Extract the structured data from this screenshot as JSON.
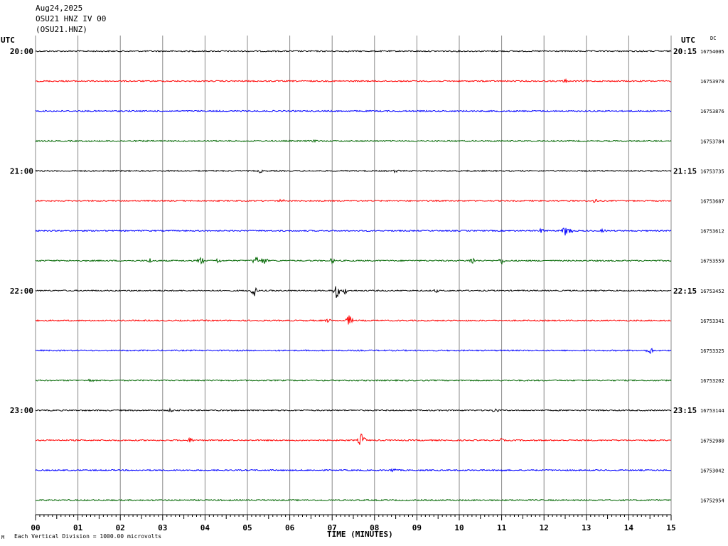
{
  "header": {
    "date": "Aug24,2025",
    "station": "OSU21 HNZ IV 00",
    "code": "(OSU21.HNZ)"
  },
  "utc_left": "UTC",
  "utc_right": "UTC",
  "dc_label": "DC",
  "footer": "Each Vertical Division = 1000.00 microvolts",
  "corner_mark": "M",
  "chart_data": {
    "type": "line",
    "xlabel": "TIME (MINUTES)",
    "xlim": [
      0,
      15
    ],
    "x_ticks": [
      "00",
      "01",
      "02",
      "03",
      "04",
      "05",
      "06",
      "07",
      "08",
      "09",
      "10",
      "11",
      "12",
      "13",
      "14",
      "15"
    ],
    "left_time_labels": [
      "20:00",
      "21:00",
      "22:00",
      "23:00"
    ],
    "right_time_labels": [
      "20:15",
      "21:15",
      "22:15",
      "23:15"
    ],
    "trace_colors": [
      "#000000",
      "#ff0000",
      "#0000ff",
      "#006600"
    ],
    "traces": [
      {
        "dc": "16754005",
        "events": [
          {
            "t": 14.3,
            "a": 2
          }
        ]
      },
      {
        "dc": "16753970",
        "events": [
          {
            "t": 12.5,
            "a": 3
          }
        ]
      },
      {
        "dc": "16753876",
        "events": []
      },
      {
        "dc": "16753784",
        "events": [
          {
            "t": 6.6,
            "a": 3
          }
        ]
      },
      {
        "dc": "16753735",
        "events": [
          {
            "t": 5.3,
            "a": 3
          },
          {
            "t": 8.5,
            "a": 3
          }
        ]
      },
      {
        "dc": "16753687",
        "events": [
          {
            "t": 5.8,
            "a": 3
          },
          {
            "t": 13.2,
            "a": 4
          }
        ]
      },
      {
        "dc": "16753612",
        "events": [
          {
            "t": 11.95,
            "a": 4
          },
          {
            "t": 12.5,
            "a": 7
          },
          {
            "t": 12.6,
            "a": 6
          },
          {
            "t": 13.4,
            "a": 3
          }
        ]
      },
      {
        "dc": "16753559",
        "events": [
          {
            "t": 2.7,
            "a": 4
          },
          {
            "t": 3.9,
            "a": 6
          },
          {
            "t": 4.3,
            "a": 4
          },
          {
            "t": 5.2,
            "a": 7
          },
          {
            "t": 5.4,
            "a": 6
          },
          {
            "t": 7.0,
            "a": 4
          },
          {
            "t": 10.3,
            "a": 6
          },
          {
            "t": 11.0,
            "a": 5
          }
        ]
      },
      {
        "dc": "16753452",
        "events": [
          {
            "t": 5.15,
            "a": 9
          },
          {
            "t": 7.1,
            "a": 11
          },
          {
            "t": 7.3,
            "a": 5
          },
          {
            "t": 9.45,
            "a": 3
          }
        ]
      },
      {
        "dc": "16753341",
        "events": [
          {
            "t": 6.9,
            "a": 3
          },
          {
            "t": 7.4,
            "a": 8
          }
        ]
      },
      {
        "dc": "16753325",
        "events": [
          {
            "t": 14.5,
            "a": 6
          }
        ]
      },
      {
        "dc": "16753202",
        "events": [
          {
            "t": 1.3,
            "a": 3
          }
        ]
      },
      {
        "dc": "16753144",
        "events": [
          {
            "t": 3.2,
            "a": 3
          },
          {
            "t": 10.85,
            "a": 4
          }
        ]
      },
      {
        "dc": "16752980",
        "events": [
          {
            "t": 3.65,
            "a": 4
          },
          {
            "t": 7.7,
            "a": 11
          },
          {
            "t": 11.0,
            "a": 3
          }
        ]
      },
      {
        "dc": "16753042",
        "events": [
          {
            "t": 8.45,
            "a": 4
          },
          {
            "t": 11.0,
            "a": 3
          }
        ]
      },
      {
        "dc": "16752954",
        "events": []
      }
    ]
  }
}
